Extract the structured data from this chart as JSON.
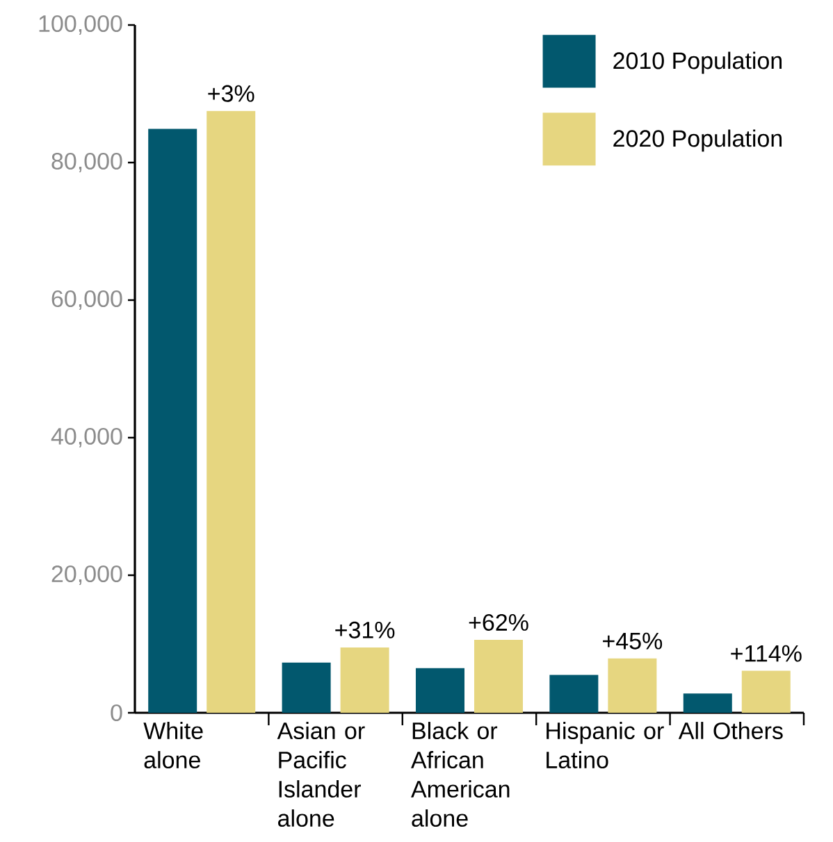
{
  "chart_data": {
    "type": "bar",
    "categories": [
      "White alone",
      "Asian or Pacific Islander alone",
      "Black or African American alone",
      "Hispanic or Latino",
      "All Others"
    ],
    "series": [
      {
        "name": "2010 Population",
        "color": "#02586e",
        "values": [
          84900,
          7300,
          6500,
          5500,
          2800
        ]
      },
      {
        "name": "2020 Population",
        "color": "#e6d680",
        "values": [
          87500,
          9500,
          10600,
          7900,
          6100
        ]
      }
    ],
    "ylim": [
      0,
      100000
    ],
    "yticks": [
      0,
      {
        "value": 20000,
        "label": "20,000"
      },
      {
        "value": 40000,
        "label": "40,000"
      },
      {
        "value": 60000,
        "label": "60,000"
      },
      {
        "value": 80000,
        "label": "80,000"
      },
      {
        "value": 100000,
        "label": "100,000"
      }
    ],
    "annotations": [
      "+3%",
      "+31%",
      "+62%",
      "+45%",
      "+114%"
    ],
    "grid": false,
    "legend": "top right"
  }
}
